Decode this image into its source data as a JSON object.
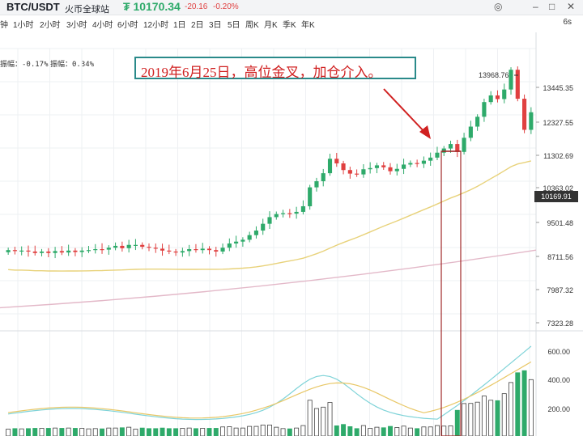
{
  "header": {
    "symbol": "BTC/USDT",
    "exchange": "火币全球站",
    "price": "₮ 10170.34",
    "change": "-20.16",
    "change_pct": "-0.20%"
  },
  "intervals": [
    "钟",
    "1小时",
    "2小时",
    "3小时",
    "4小时",
    "6小时",
    "12小时",
    "1日",
    "2日",
    "3日",
    "5日",
    "周K",
    "月K",
    "季K",
    "年K"
  ],
  "interval_right": "6s",
  "indicators": {
    "amplitude_a": "振幅：-0.17%",
    "amplitude_b": "振幅：0.34%"
  },
  "annotation": "2019年6月25日，高位金叉，加仓介入。",
  "price_axis": [
    "13445.35",
    "12327.55",
    "11302.69",
    "10363.02",
    "9501.48",
    "8711.56",
    "7987.32",
    "7323.28"
  ],
  "current_price_label": "10169.91",
  "peak_label": "13968.76",
  "volume_axis": [
    "600.00",
    "400.00",
    "200.00"
  ],
  "colors": {
    "up": "#2eaa6a",
    "down": "#e04040",
    "ma_short": "#e8d27a",
    "ma_long": "#e3b8c8",
    "annotation_border": "#2a8a8a",
    "annotation_text": "#d02020"
  },
  "chart_data": {
    "type": "candlestick",
    "price_range": [
      7323.28,
      13968.76
    ],
    "peak": 13968.76,
    "current": 10169.91,
    "closes": [
      8880,
      8860,
      8870,
      8850,
      8820,
      8850,
      8820,
      8860,
      8830,
      8870,
      8840,
      8870,
      8880,
      8900,
      8890,
      8930,
      8970,
      8920,
      8990,
      8990,
      8950,
      8930,
      8910,
      8870,
      8850,
      8830,
      8860,
      8900,
      8880,
      8910,
      8880,
      8850,
      8930,
      9020,
      9060,
      9100,
      9200,
      9300,
      9450,
      9600,
      9670,
      9690,
      9680,
      9720,
      9850,
      10300,
      10450,
      10650,
      11020,
      10900,
      10730,
      10640,
      10620,
      10750,
      10780,
      10850,
      10800,
      10700,
      10760,
      10870,
      10910,
      10890,
      10970,
      11050,
      11180,
      11290,
      11410,
      11200,
      11580,
      11890,
      12170,
      12600,
      12800,
      12690,
      12980,
      13600,
      12700,
      11800,
      12300
    ]
  }
}
